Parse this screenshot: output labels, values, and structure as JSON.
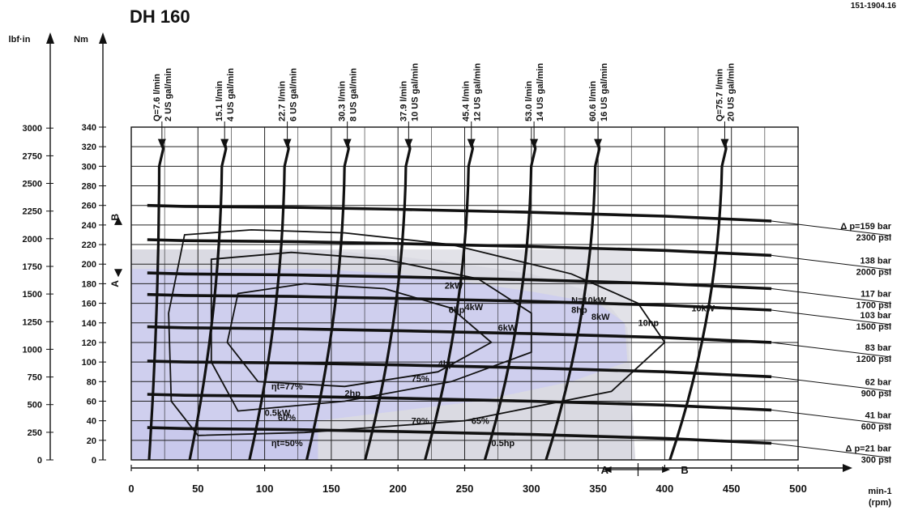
{
  "chart_data": {
    "type": "line",
    "title": "DH 160",
    "doc_ref": "151-1904.16",
    "x_axis": {
      "label_1": "min-1",
      "label_2": "(rpm)",
      "ticks": [
        0,
        50,
        100,
        150,
        200,
        250,
        300,
        350,
        400,
        450,
        500
      ],
      "range": [
        0,
        500
      ]
    },
    "y_axis_nm": {
      "label": "Nm",
      "ticks": [
        0,
        20,
        40,
        60,
        80,
        100,
        120,
        140,
        160,
        180,
        200,
        220,
        240,
        260,
        280,
        300,
        320,
        340
      ],
      "range": [
        0,
        340
      ]
    },
    "y_axis_lbfin": {
      "label": "lbf·in",
      "ticks": [
        "0",
        "250",
        "500",
        "750",
        "1000",
        "1250",
        "1500",
        "1750",
        "2000",
        "2250",
        "2500",
        "2750",
        "3000"
      ],
      "values_nm": [
        0,
        28.2,
        56.5,
        84.7,
        113,
        141.2,
        169.5,
        197.7,
        226,
        254.2,
        282.5,
        310.7,
        339
      ]
    },
    "flow_lines": [
      {
        "label_1": "Q=7.6 l/min",
        "label_2": "2 US gal/min",
        "rpm_at_top": 23
      },
      {
        "label_1": "15.1 l/min",
        "label_2": "4 US gal/min",
        "rpm_at_top": 70
      },
      {
        "label_1": "22.7 l/min",
        "label_2": "6 US gal/min",
        "rpm_at_top": 117
      },
      {
        "label_1": "30.3 l/min",
        "label_2": "8 US gal/min",
        "rpm_at_top": 162
      },
      {
        "label_1": "37.9 l/min",
        "label_2": "10 US gal/min",
        "rpm_at_top": 208
      },
      {
        "label_1": "45.4 l/min",
        "label_2": "12 US gal/min",
        "rpm_at_top": 255
      },
      {
        "label_1": "53.0 l/min",
        "label_2": "14 US gal/min",
        "rpm_at_top": 302
      },
      {
        "label_1": "60.6 l/min",
        "label_2": "16 US gal/min",
        "rpm_at_top": 350
      },
      {
        "label_1": "Q=75.7 l/min",
        "label_2": "20 US gal/min",
        "rpm_at_top": 445
      }
    ],
    "pressure_lines": [
      {
        "label_1": "Δ p=159 bar",
        "label_2": "2300 psi",
        "torque_nm": 257
      },
      {
        "label_1": "138 bar",
        "label_2": "2000 psi",
        "torque_nm": 222
      },
      {
        "label_1": "117 bar",
        "label_2": "1700 psi",
        "torque_nm": 188
      },
      {
        "label_1": "103 bar",
        "label_2": "1500 psi",
        "torque_nm": 166
      },
      {
        "label_1": "83 bar",
        "label_2": "1200 psi",
        "torque_nm": 133
      },
      {
        "label_1": "62 bar",
        "label_2": "900 psi",
        "torque_nm": 98
      },
      {
        "label_1": "41 bar",
        "label_2": "600 psi",
        "torque_nm": 64
      },
      {
        "label_1": "Δ p=21 bar",
        "label_2": "300 psi",
        "torque_nm": 30
      }
    ],
    "annotations": {
      "power_lines": [
        "2kW",
        "4kW",
        "6kW",
        "8kW",
        "10kW",
        "N=10kW"
      ],
      "hp_lines": [
        "2hp",
        "4hp",
        "6hp",
        "8hp",
        "10hp",
        "0.5hp",
        "0.5kW"
      ],
      "efficiency": [
        "ηt=77%",
        "75%",
        "70%",
        "65%",
        "60%",
        "ηt=50%"
      ],
      "direction_a": "A",
      "direction_b": "B",
      "side_label_b": "B",
      "side_label_a": "A"
    }
  }
}
